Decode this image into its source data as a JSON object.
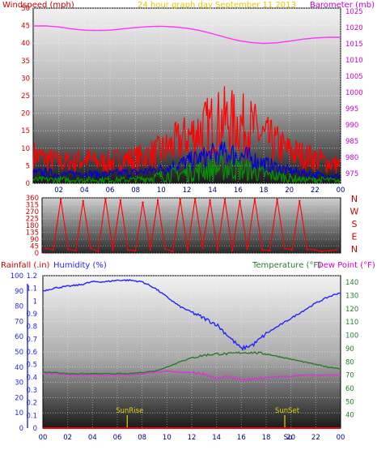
{
  "chart_data": [
    {
      "type": "line",
      "header": {
        "left": "Windspeed (mph)",
        "center": "24 hour graph day   September 11 2013",
        "right": "Barometer (mb)"
      },
      "x_ticks": [
        "02",
        "04",
        "06",
        "08",
        "10",
        "12",
        "14",
        "16",
        "18",
        "20",
        "22",
        "00"
      ],
      "y_left": {
        "label": "Windspeed (mph)",
        "ticks": [
          0,
          5,
          10,
          15,
          20,
          25,
          30,
          35,
          40,
          45,
          50
        ],
        "range": [
          0,
          50
        ]
      },
      "y_right": {
        "label": "Barometer (mb)",
        "ticks": [
          975,
          980,
          985,
          990,
          995,
          1000,
          1005,
          1010,
          1015,
          1020,
          1025
        ],
        "range": [
          972,
          1026
        ]
      },
      "grid": true,
      "series": [
        {
          "name": "Barometer (mb)",
          "color": "#ff33ff",
          "x": [
            0,
            1,
            2,
            3,
            4,
            5,
            6,
            7,
            8,
            9,
            10,
            11,
            12,
            13,
            14,
            15,
            16,
            17,
            18,
            19,
            20,
            21,
            22,
            23,
            24
          ],
          "values": [
            1020.5,
            1020.5,
            1020.2,
            1019.6,
            1019.2,
            1019.1,
            1019.2,
            1019.6,
            1020.0,
            1020.3,
            1020.4,
            1020.2,
            1019.8,
            1019.1,
            1018.1,
            1017.0,
            1016.0,
            1015.4,
            1015.1,
            1015.3,
            1015.8,
            1016.4,
            1016.8,
            1017.0,
            1017.0
          ]
        },
        {
          "name": "Gust",
          "color": "#ff0000",
          "x": [
            0,
            1,
            2,
            3,
            4,
            5,
            6,
            7,
            8,
            9,
            10,
            11,
            12,
            13,
            14,
            15,
            16,
            17,
            18,
            19,
            20,
            21,
            22,
            23,
            24
          ],
          "values": [
            8,
            7,
            6,
            6,
            7,
            6,
            6,
            7,
            7,
            8,
            9,
            11,
            13,
            15,
            17,
            18,
            17,
            16,
            13,
            11,
            9,
            8,
            7,
            6,
            5
          ]
        },
        {
          "name": "Average",
          "color": "#0000dd",
          "x": [
            0,
            1,
            2,
            3,
            4,
            5,
            6,
            7,
            8,
            9,
            10,
            11,
            12,
            13,
            14,
            15,
            16,
            17,
            18,
            19,
            20,
            21,
            22,
            23,
            24
          ],
          "values": [
            3,
            3,
            2.5,
            2.5,
            3,
            2.5,
            2.5,
            3,
            3,
            3.5,
            4,
            5,
            6,
            7,
            8,
            8.5,
            8,
            7,
            5.5,
            4.5,
            3.5,
            3,
            2.5,
            2,
            2
          ]
        },
        {
          "name": "Windspeed",
          "color": "#009900",
          "x": [
            0,
            1,
            2,
            3,
            4,
            5,
            6,
            7,
            8,
            9,
            10,
            11,
            12,
            13,
            14,
            15,
            16,
            17,
            18,
            19,
            20,
            21,
            22,
            23,
            24
          ],
          "values": [
            1,
            1,
            1,
            1,
            1,
            1,
            1,
            1,
            1,
            1.5,
            2,
            2.5,
            3,
            3.5,
            4,
            4.5,
            4,
            3.5,
            2.5,
            2,
            1.5,
            1,
            1,
            1,
            0.5
          ]
        }
      ]
    },
    {
      "type": "scatter",
      "y_left": {
        "ticks": [
          0,
          45,
          90,
          135,
          180,
          225,
          270,
          315,
          360
        ],
        "range": [
          0,
          360
        ]
      },
      "y_right": {
        "ticks": [
          "N",
          "W",
          "S",
          "E",
          "N"
        ]
      },
      "series": [
        {
          "name": "Wind direction (°)",
          "color": "#ff0000",
          "x": [
            0.3,
            0.9,
            1.5,
            2.1,
            2.7,
            3.3,
            3.9,
            4.5,
            5.1,
            5.7,
            6.3,
            6.9,
            7.5,
            8.1,
            8.7,
            9.3,
            9.9,
            10.5,
            11.1,
            11.7,
            12.3,
            12.9,
            13.5,
            14.1,
            14.7,
            15.3,
            15.9,
            16.5,
            17.1,
            17.7,
            18.3,
            18.9,
            19.5,
            20.1,
            20.7,
            21.3,
            21.9,
            22.5,
            23.1,
            23.7
          ],
          "values": [
            30,
            20,
            350,
            25,
            15,
            340,
            30,
            10,
            355,
            20,
            345,
            20,
            15,
            330,
            20,
            345,
            25,
            10,
            350,
            20,
            355,
            30,
            345,
            20,
            350,
            15,
            340,
            25,
            355,
            20,
            15,
            350,
            30,
            20,
            340,
            25,
            20,
            10,
            15,
            20
          ]
        }
      ]
    },
    {
      "type": "line",
      "header": {
        "left_red": "Rainfall (.in)",
        "left_blue": "Humidity (%)",
        "right_green": "Temperature (°F)",
        "right_magenta": "Dew Point (°F)"
      },
      "x_ticks": [
        "00",
        "02",
        "04",
        "06",
        "08",
        "10",
        "12",
        "14",
        "16",
        "18",
        "20",
        "22",
        "00"
      ],
      "x_ticks_second_last": "Su",
      "y_rain": {
        "label": "Rainfall (.in)",
        "ticks": [
          "0",
          "0.1",
          "0.2",
          "0.3",
          "0.4",
          "0.5",
          "0.6",
          "0.7",
          "0.8",
          "0.9",
          "1",
          "1.1",
          "1.2"
        ],
        "range": [
          0,
          1.2
        ]
      },
      "y_humidity": {
        "label": "Humidity (%)",
        "ticks": [
          0,
          10,
          20,
          30,
          40,
          50,
          60,
          70,
          80,
          90,
          100
        ],
        "range": [
          0,
          100
        ]
      },
      "y_temp": {
        "label": "Temperature (°F)",
        "ticks": [
          40,
          50,
          60,
          70,
          80,
          90,
          100,
          110,
          120,
          130,
          140
        ],
        "range": [
          30,
          145
        ]
      },
      "annotations": {
        "sunrise_label": "SunRise",
        "sunrise_hour": 6.8,
        "sunset_label": "SunSet",
        "sunset_hour": 19.5
      },
      "series": [
        {
          "name": "Humidity (%)",
          "axis": "humidity",
          "color": "#2222ff",
          "x": [
            0,
            1,
            2,
            3,
            4,
            5,
            6,
            7,
            8,
            9,
            10,
            11,
            12,
            13,
            14,
            15,
            16,
            17,
            18,
            19,
            20,
            21,
            22,
            23,
            24
          ],
          "values": [
            90,
            92,
            93,
            94,
            96,
            96,
            97,
            97,
            96,
            92,
            86,
            80,
            76,
            72,
            68,
            60,
            52,
            55,
            62,
            67,
            72,
            77,
            82,
            86,
            89
          ]
        },
        {
          "name": "Temperature (°F)",
          "axis": "temp",
          "color": "#2b7a2b",
          "x": [
            0,
            1,
            2,
            3,
            4,
            5,
            6,
            7,
            8,
            9,
            10,
            11,
            12,
            13,
            14,
            15,
            16,
            17,
            18,
            19,
            20,
            21,
            22,
            23,
            24
          ],
          "values": [
            72,
            72,
            71,
            71,
            71,
            71,
            71,
            71,
            72,
            73,
            76,
            80,
            83,
            85,
            86,
            86,
            87,
            87,
            86,
            84,
            82,
            80,
            78,
            76,
            75
          ]
        },
        {
          "name": "Dew Point (°F)",
          "axis": "temp",
          "color": "#dd33dd",
          "x": [
            0,
            1,
            2,
            3,
            4,
            5,
            6,
            7,
            8,
            9,
            10,
            11,
            12,
            13,
            14,
            15,
            16,
            17,
            18,
            19,
            20,
            21,
            22,
            23,
            24
          ],
          "values": [
            71,
            71,
            70,
            70,
            70,
            70,
            70,
            70,
            71,
            72,
            73,
            72,
            72,
            71,
            67,
            69,
            66,
            67,
            68,
            69,
            69,
            70,
            70,
            70,
            70
          ]
        },
        {
          "name": "Rainfall (.in)",
          "axis": "rain",
          "color": "#ff0000",
          "x": [
            0,
            24
          ],
          "values": [
            0,
            0
          ]
        }
      ]
    }
  ]
}
